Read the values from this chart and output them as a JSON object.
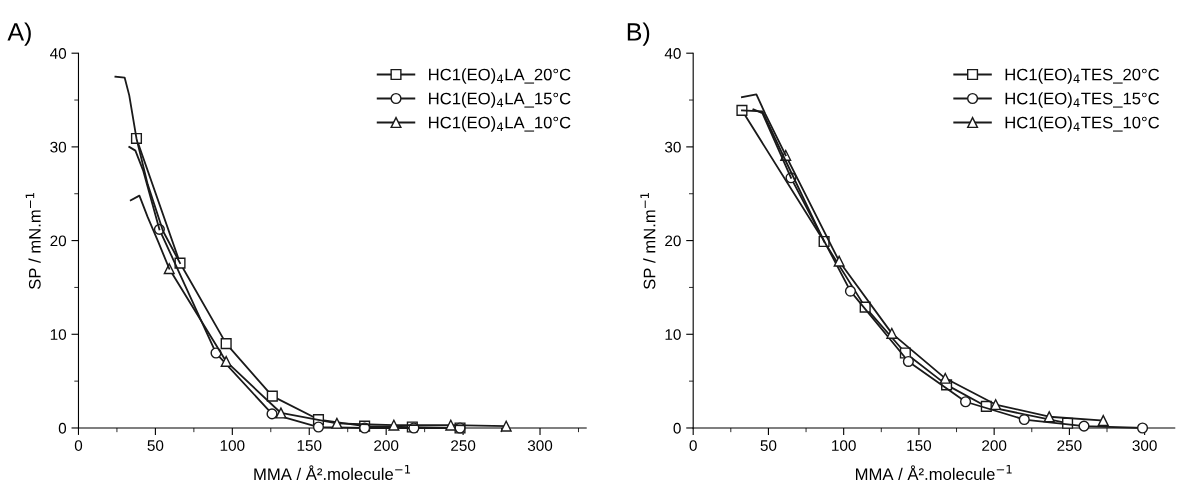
{
  "chart_data": [
    {
      "type": "line",
      "title": "A)",
      "xlabel": "MMA / Å².molecule$^{−1}$",
      "ylabel": "SP / mN.m$^{−1}$",
      "xlim": [
        0,
        330
      ],
      "ylim": [
        0,
        40
      ],
      "xticks": [
        0,
        50,
        100,
        150,
        200,
        250,
        300
      ],
      "yticks": [
        0,
        10,
        20,
        30,
        40
      ],
      "grid": false,
      "legend": "top right",
      "line_style": "solid",
      "series": [
        {
          "name": "HC1(EO)$_{4}$LA_20°C",
          "color": "#1a1a1a",
          "marker": "square",
          "x": [
            37.7,
            66,
            96,
            126,
            156,
            186,
            217,
            248
          ],
          "values": [
            30.9,
            17.6,
            9,
            3.4,
            0.9,
            0.2,
            0.1,
            0
          ]
        },
        {
          "name": "HC1(EO)$_{4}$LA_15°C",
          "color": "#1a1a1a",
          "marker": "circle",
          "x": [
            52.6,
            89.4,
            125.8,
            156,
            186,
            218,
            248
          ],
          "values": [
            21.2,
            8.0,
            1.5,
            0.1,
            0,
            0,
            0
          ]
        },
        {
          "name": "HC1(EO)$_{4}$LA_10°C",
          "color": "#1a1a1a",
          "marker": "triangle",
          "x": [
            59,
            96,
            131.6,
            168,
            205,
            242,
            278
          ],
          "values": [
            17,
            7.1,
            1.6,
            0.5,
            0.3,
            0.3,
            0.2
          ]
        },
        {
          "type": "line",
          "color": "#1a1a1a",
          "marker": "none",
          "x": [
            24,
            30,
            33,
            37.7,
            45,
            55,
            66
          ],
          "values": [
            37.5,
            37.4,
            35.5,
            30.9,
            26,
            21,
            17.6
          ]
        },
        {
          "type": "line",
          "color": "#1a1a1a",
          "marker": "none",
          "x": [
            33,
            37,
            42,
            52.6
          ],
          "values": [
            30,
            29.6,
            27.5,
            21.2
          ]
        },
        {
          "type": "line",
          "color": "#1a1a1a",
          "marker": "none",
          "x": [
            34,
            39.6,
            45,
            52,
            59
          ],
          "values": [
            24.3,
            24.8,
            22.5,
            19.8,
            17
          ]
        }
      ]
    },
    {
      "type": "line",
      "title": "B)",
      "xlabel": "MMA / Å².molecule$^{−1}$",
      "ylabel": "SP / mN.m$^{−1}$",
      "xlim": [
        0,
        320
      ],
      "ylim": [
        0,
        40
      ],
      "xticks": [
        0,
        50,
        100,
        150,
        200,
        250,
        300
      ],
      "yticks": [
        0,
        10,
        20,
        30,
        40
      ],
      "grid": false,
      "legend": "top right",
      "line_style": "solid",
      "series": [
        {
          "name": "HC1(EO)$_{4}$TES_20°C",
          "color": "#1a1a1a",
          "marker": "square",
          "x": [
            32.4,
            87,
            114.3,
            141,
            168.4,
            194.8,
            248.8
          ],
          "values": [
            33.9,
            19.9,
            12.9,
            8.0,
            4.6,
            2.3,
            0.5
          ]
        },
        {
          "name": "HC1(EO)$_{4}$TES_15°C",
          "color": "#1a1a1a",
          "marker": "circle",
          "x": [
            65,
            104.5,
            143,
            181,
            220,
            259.7,
            298.6
          ],
          "values": [
            26.7,
            14.6,
            7.1,
            2.8,
            0.9,
            0.2,
            0
          ]
        },
        {
          "name": "HC1(EO)$_{4}$TES_10°C",
          "color": "#1a1a1a",
          "marker": "triangle",
          "x": [
            61.5,
            97,
            132,
            167.5,
            201,
            236.6,
            272.5
          ],
          "values": [
            29.1,
            17.8,
            10.1,
            5.3,
            2.5,
            1.2,
            0.8
          ]
        },
        {
          "type": "line",
          "color": "#1a1a1a",
          "marker": "none",
          "x": [
            32.4,
            46,
            60,
            87
          ],
          "values": [
            33.9,
            33.8,
            29,
            19.9
          ]
        },
        {
          "type": "line",
          "color": "#1a1a1a",
          "marker": "none",
          "x": [
            40,
            46,
            65
          ],
          "values": [
            34,
            33.6,
            26.7
          ]
        },
        {
          "type": "line",
          "color": "#1a1a1a",
          "marker": "none",
          "x": [
            32.4,
            42,
            48,
            61.5
          ],
          "values": [
            35.3,
            35.6,
            33.5,
            29.1
          ]
        }
      ]
    }
  ]
}
